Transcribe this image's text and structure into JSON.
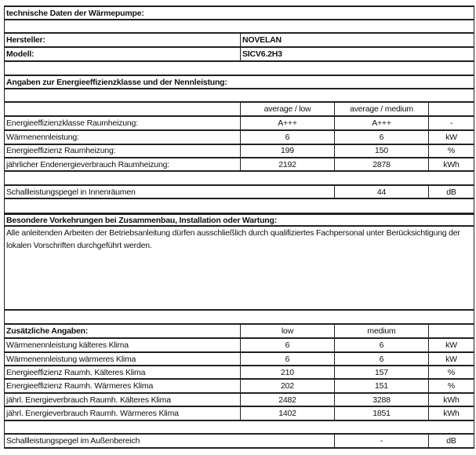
{
  "title": "technische Daten der Wärmepumpe:",
  "manufacturer": {
    "label": "Hersteller:",
    "value": "NOVELAN"
  },
  "model": {
    "label": "Modell:",
    "value": "SICV6.2H3"
  },
  "efficiency_section": {
    "title": "Angaben zur Energieeffizienzklasse und der Nennleistung:",
    "columns": [
      "average / low",
      "average / medium",
      ""
    ],
    "rows": [
      {
        "label": "Energieeffizienzklasse Raumheizung:",
        "low": "A+++",
        "medium": "A+++",
        "unit": "-"
      },
      {
        "label": "Wärmenennleistung:",
        "low": "6",
        "medium": "6",
        "unit": "kW"
      },
      {
        "label": "Energieeffizienz Raumheizung:",
        "low": "199",
        "medium": "150",
        "unit": "%"
      },
      {
        "label": "jährlicher Endenergieverbrauch Raumheizung:",
        "low": "2192",
        "medium": "2878",
        "unit": "kWh"
      }
    ],
    "sound_indoor": {
      "label": "Schallleistungspegel in Innenräumen",
      "value": "44",
      "unit": "dB"
    }
  },
  "precautions": {
    "title": "Besondere Vorkehrungen bei Zusammenbau, Installation oder Wartung:",
    "text": "Alle anleitenden Arbeiten der Betriebsanleitung dürfen ausschließlich durch qualifiziertes Fachpersonal unter Berücksichtigung der lokalen Vorschriften durchgeführt werden."
  },
  "additional": {
    "title": "Zusätzliche Angaben:",
    "columns": [
      "low",
      "medium",
      ""
    ],
    "rows": [
      {
        "label": "Wärmenennleistung kälteres Klima",
        "low": "6",
        "medium": "6",
        "unit": "kW"
      },
      {
        "label": "Wärmenennleistung wärmeres Klima",
        "low": "6",
        "medium": "6",
        "unit": "kW"
      },
      {
        "label": "Energieeffizienz Raumh. Kälteres Klima",
        "low": "210",
        "medium": "157",
        "unit": "%"
      },
      {
        "label": "Energieeffizienz Raumh. Wärmeres Klima",
        "low": "202",
        "medium": "151",
        "unit": "%"
      },
      {
        "label": "jährl. Energieverbrauch Raumh. Kälteres Klima",
        "low": "2482",
        "medium": "3288",
        "unit": "kWh"
      },
      {
        "label": "jährl. Energieverbrauch Raumh. Wärmeres Klima",
        "low": "1402",
        "medium": "1851",
        "unit": "kWh"
      }
    ],
    "sound_outdoor": {
      "label": "Schallleistungspegel im Außenbereich",
      "value": "-",
      "unit": "dB"
    }
  }
}
